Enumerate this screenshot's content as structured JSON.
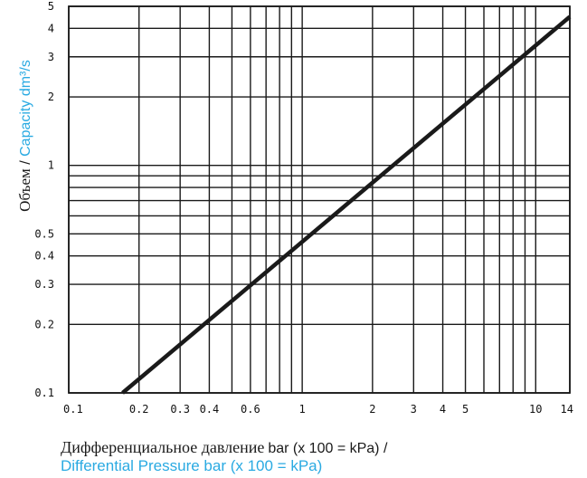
{
  "chart_data": {
    "type": "line",
    "xscale": "log",
    "yscale": "log",
    "xlim": [
      0.1,
      14
    ],
    "ylim": [
      0.1,
      5
    ],
    "grid": true,
    "x_ticks": [
      {
        "value": 0.1,
        "label": "0.1"
      },
      {
        "value": 0.2,
        "label": "0.2"
      },
      {
        "value": 0.3,
        "label": "0.3"
      },
      {
        "value": 0.4,
        "label": "0.4"
      },
      {
        "value": 0.6,
        "label": "0.6"
      },
      {
        "value": 1,
        "label": "1"
      },
      {
        "value": 2,
        "label": "2"
      },
      {
        "value": 3,
        "label": "3"
      },
      {
        "value": 4,
        "label": "4"
      },
      {
        "value": 5,
        "label": "5"
      },
      {
        "value": 10,
        "label": "10"
      },
      {
        "value": 14,
        "label": "14"
      }
    ],
    "y_ticks": [
      {
        "value": 0.1,
        "label": "0.1"
      },
      {
        "value": 0.2,
        "label": "0.2"
      },
      {
        "value": 0.3,
        "label": "0.3"
      },
      {
        "value": 0.4,
        "label": "0.4"
      },
      {
        "value": 0.5,
        "label": "0.5"
      },
      {
        "value": 1,
        "label": "1"
      },
      {
        "value": 2,
        "label": "2"
      },
      {
        "value": 3,
        "label": "3"
      },
      {
        "value": 4,
        "label": "4"
      },
      {
        "value": 5,
        "label": "5"
      }
    ],
    "x_grid": [
      0.1,
      0.2,
      0.3,
      0.4,
      0.5,
      0.6,
      0.7,
      0.8,
      0.9,
      1,
      2,
      3,
      4,
      5,
      6,
      7,
      8,
      9,
      10,
      14
    ],
    "y_grid": [
      0.1,
      0.2,
      0.3,
      0.4,
      0.5,
      0.6,
      0.7,
      0.8,
      0.9,
      1,
      2,
      3,
      4,
      5
    ],
    "series": [
      {
        "x": [
          0.17,
          14
        ],
        "y": [
          0.1,
          4.5
        ],
        "color": "#1a1a1a"
      }
    ],
    "ylabel": {
      "ru": "Объем",
      "separator": " / ",
      "en": "Capacity dm³/s"
    },
    "xlabel": {
      "ru": "Дифференциальное давление",
      "ru_units": "bar (x 100 = kPa) /",
      "en": "Differential Pressure  bar (x 100 = kPa)"
    },
    "colors": {
      "grid": "#1a1a1a",
      "line": "#1a1a1a",
      "accent": "#2aaae2",
      "text": "#111111"
    }
  }
}
